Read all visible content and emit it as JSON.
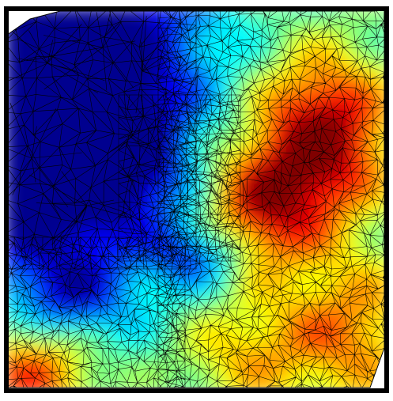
{
  "figure": {
    "kind": "triangulated-mesh-heatmap",
    "colormap": "jet",
    "colors": {
      "background": "#ffffff",
      "frame": "#000000",
      "mesh_edges": "#000000",
      "colormap_stops": [
        "#00008f",
        "#0000ff",
        "#0080ff",
        "#00ffff",
        "#80ff80",
        "#ffff00",
        "#ff8000",
        "#ff0000",
        "#800000"
      ]
    },
    "regions": [
      {
        "name": "north-west",
        "level": "low"
      },
      {
        "name": "upper-right",
        "level": "high"
      },
      {
        "name": "center-right",
        "level": "high"
      },
      {
        "name": "bottom-left",
        "level": "high"
      }
    ]
  }
}
